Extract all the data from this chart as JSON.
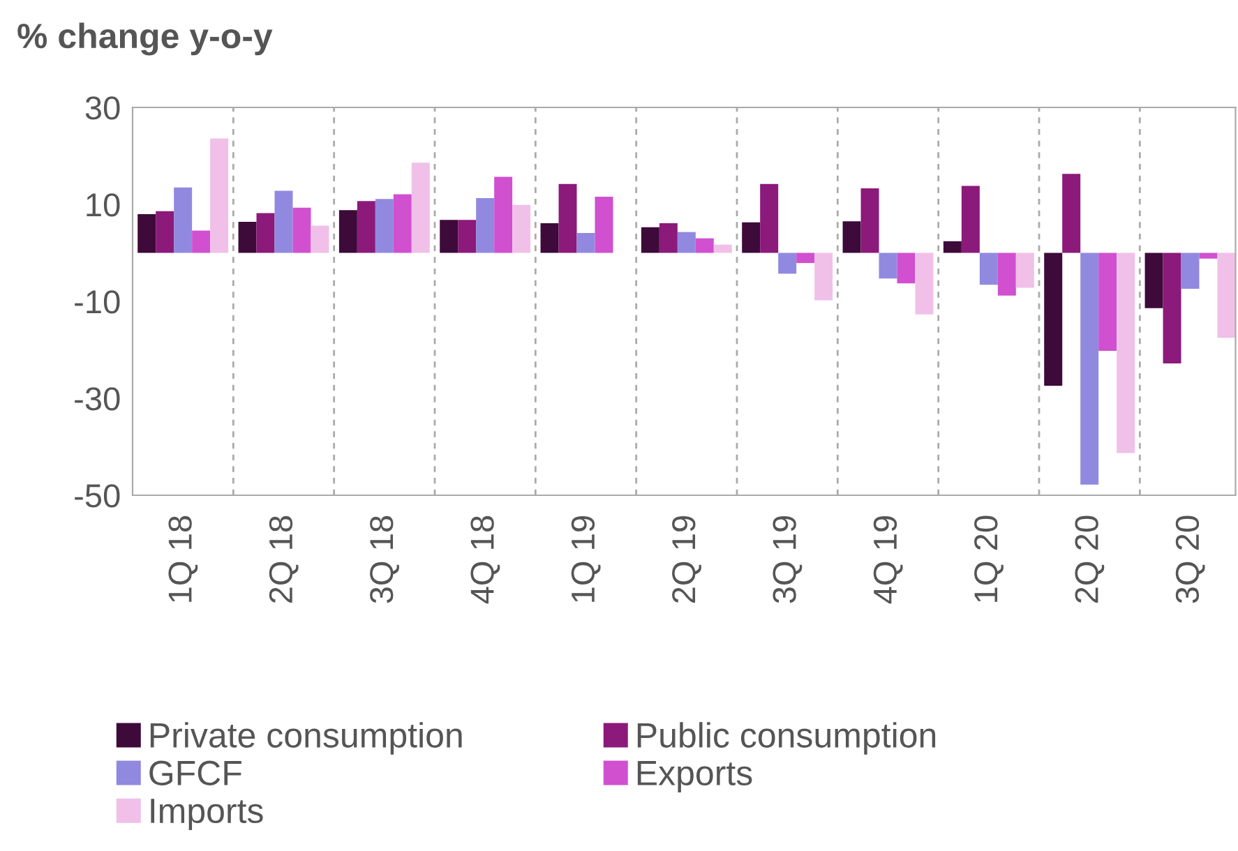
{
  "chart_data": {
    "type": "bar",
    "ylabel": "% change y-o-y",
    "categories": [
      "1Q 18",
      "2Q 18",
      "3Q 18",
      "4Q 18",
      "1Q 19",
      "2Q 19",
      "3Q 19",
      "4Q 19",
      "1Q 20",
      "2Q 20",
      "3Q 20"
    ],
    "series": [
      {
        "name": "Private consumption",
        "color": "#3d0a3a",
        "values": [
          8.0,
          6.4,
          8.8,
          6.8,
          6.1,
          5.3,
          6.3,
          6.5,
          2.4,
          -27.4,
          -11.4
        ]
      },
      {
        "name": "Public consumption",
        "color": "#8b1a7a",
        "values": [
          8.6,
          8.2,
          10.7,
          6.8,
          14.2,
          6.1,
          14.2,
          13.3,
          13.8,
          16.3,
          -22.8
        ]
      },
      {
        "name": "GFCF",
        "color": "#9189e0",
        "values": [
          13.5,
          12.8,
          11.1,
          11.3,
          4.1,
          4.3,
          -4.3,
          -5.3,
          -6.6,
          -47.8,
          -7.4
        ]
      },
      {
        "name": "Exports",
        "color": "#d050d0",
        "values": [
          4.6,
          9.3,
          12.1,
          15.7,
          11.6,
          3.0,
          -2.1,
          -6.3,
          -8.8,
          -20.2,
          -1.2
        ]
      },
      {
        "name": "Imports",
        "color": "#f0c0e8",
        "values": [
          23.6,
          5.6,
          18.6,
          9.9,
          null,
          1.7,
          -9.8,
          -12.7,
          -7.2,
          -41.3,
          -17.5
        ]
      }
    ],
    "ylim": [
      -50,
      30
    ],
    "yticks": [
      -50,
      -30,
      -10,
      10,
      30
    ],
    "grid": "x",
    "legend": "bottom"
  }
}
